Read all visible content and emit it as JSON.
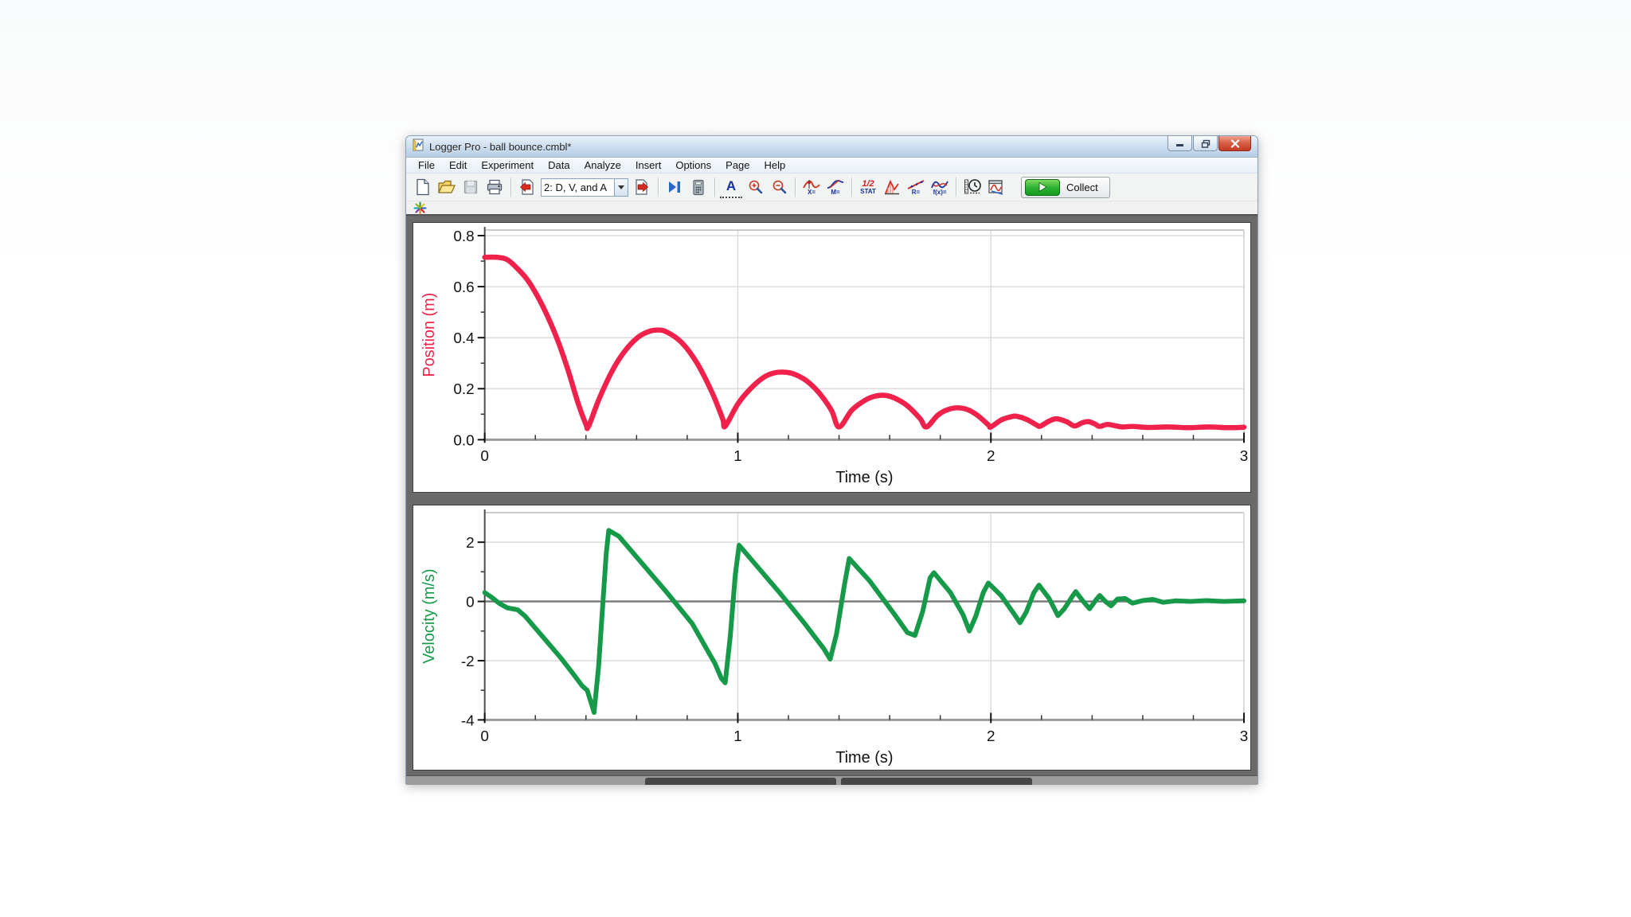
{
  "window": {
    "title": "Logger Pro - ball bounce.cmbl*"
  },
  "menu": {
    "items": [
      "File",
      "Edit",
      "Experiment",
      "Data",
      "Analyze",
      "Insert",
      "Options",
      "Page",
      "Help"
    ]
  },
  "toolbar": {
    "page_selector_value": "2: D, V, and A",
    "collect_label": "Collect",
    "icon_labels": {
      "autoscale": "A",
      "examine": "X=",
      "tangent": "M=",
      "stats_fraction": "1/2",
      "stats": "STAT",
      "linear_fit": "R=",
      "curve_fit": "f(x)="
    },
    "icons": [
      "new-file",
      "open-folder",
      "save",
      "print",
      "previous-page",
      "page-selector",
      "next-page",
      "step-playback",
      "calculator",
      "autoscale",
      "zoom-in",
      "zoom-out",
      "examine",
      "tangent",
      "statistics",
      "integral",
      "linear-fit",
      "curve-fit",
      "data-collection",
      "store-run",
      "collect"
    ]
  },
  "colors": {
    "position": "#f0214b",
    "velocity": "#169a49",
    "collect_green": "#2eb336",
    "close_red": "#c23a22"
  },
  "chart_data": [
    {
      "type": "line",
      "name": "position-vs-time",
      "xlabel": "Time (s)",
      "ylabel": "Position (m)",
      "xlim": [
        0,
        3
      ],
      "ylim": [
        0,
        0.822
      ],
      "xticks": [
        {
          "v": 0,
          "label": "0"
        },
        {
          "v": 1,
          "label": "1"
        },
        {
          "v": 2,
          "label": "2"
        },
        {
          "v": 3,
          "label": "3"
        }
      ],
      "yticks": [
        {
          "v": 0,
          "label": "0.0"
        },
        {
          "v": 0.2,
          "label": "0.2"
        },
        {
          "v": 0.4,
          "label": "0.4"
        },
        {
          "v": 0.6,
          "label": "0.6"
        },
        {
          "v": 0.8,
          "label": "0.8"
        }
      ],
      "x_minor_step": 0.2,
      "y_minor_step": 0.1,
      "grid_x": [
        1,
        2
      ],
      "grid_y": [
        0.2,
        0.4,
        0.6,
        0.8
      ],
      "zero_line": false,
      "grid": true,
      "legend": "none",
      "color": "#f0214b",
      "smooth": true,
      "series": [
        {
          "name": "Position",
          "points": [
            [
              0,
              0.715
            ],
            [
              0.05,
              0.715
            ],
            [
              0.09,
              0.705
            ],
            [
              0.13,
              0.67
            ],
            [
              0.17,
              0.625
            ],
            [
              0.21,
              0.56
            ],
            [
              0.25,
              0.48
            ],
            [
              0.29,
              0.385
            ],
            [
              0.33,
              0.27
            ],
            [
              0.37,
              0.14
            ],
            [
              0.4,
              0.06
            ],
            [
              0.41,
              0.052
            ],
            [
              0.45,
              0.155
            ],
            [
              0.5,
              0.263
            ],
            [
              0.55,
              0.343
            ],
            [
              0.6,
              0.397
            ],
            [
              0.64,
              0.421
            ],
            [
              0.68,
              0.43
            ],
            [
              0.72,
              0.422
            ],
            [
              0.78,
              0.379
            ],
            [
              0.84,
              0.298
            ],
            [
              0.9,
              0.181
            ],
            [
              0.94,
              0.082
            ],
            [
              0.95,
              0.053
            ],
            [
              1.0,
              0.14
            ],
            [
              1.05,
              0.2
            ],
            [
              1.1,
              0.243
            ],
            [
              1.14,
              0.261
            ],
            [
              1.18,
              0.265
            ],
            [
              1.22,
              0.258
            ],
            [
              1.27,
              0.232
            ],
            [
              1.32,
              0.185
            ],
            [
              1.37,
              0.115
            ],
            [
              1.4,
              0.05
            ],
            [
              1.45,
              0.115
            ],
            [
              1.5,
              0.153
            ],
            [
              1.54,
              0.17
            ],
            [
              1.58,
              0.174
            ],
            [
              1.62,
              0.163
            ],
            [
              1.67,
              0.133
            ],
            [
              1.72,
              0.083
            ],
            [
              1.745,
              0.05
            ],
            [
              1.79,
              0.096
            ],
            [
              1.83,
              0.118
            ],
            [
              1.87,
              0.125
            ],
            [
              1.91,
              0.117
            ],
            [
              1.95,
              0.093
            ],
            [
              1.99,
              0.058
            ],
            [
              2.0,
              0.05
            ],
            [
              2.04,
              0.077
            ],
            [
              2.08,
              0.09
            ],
            [
              2.1,
              0.092
            ],
            [
              2.14,
              0.08
            ],
            [
              2.18,
              0.058
            ],
            [
              2.195,
              0.053
            ],
            [
              2.23,
              0.073
            ],
            [
              2.26,
              0.082
            ],
            [
              2.3,
              0.07
            ],
            [
              2.33,
              0.054
            ],
            [
              2.36,
              0.066
            ],
            [
              2.385,
              0.071
            ],
            [
              2.41,
              0.062
            ],
            [
              2.43,
              0.052
            ],
            [
              2.46,
              0.06
            ],
            [
              2.49,
              0.055
            ],
            [
              2.52,
              0.05
            ],
            [
              2.56,
              0.052
            ],
            [
              2.62,
              0.048
            ],
            [
              2.7,
              0.05
            ],
            [
              2.78,
              0.047
            ],
            [
              2.86,
              0.05
            ],
            [
              2.94,
              0.047
            ],
            [
              3.0,
              0.049
            ]
          ]
        }
      ]
    },
    {
      "type": "line",
      "name": "velocity-vs-time",
      "xlabel": "Time (s)",
      "ylabel": "Velocity (m/s)",
      "xlim": [
        0,
        3
      ],
      "ylim": [
        -4,
        3
      ],
      "xticks": [
        {
          "v": 0,
          "label": "0"
        },
        {
          "v": 1,
          "label": "1"
        },
        {
          "v": 2,
          "label": "2"
        },
        {
          "v": 3,
          "label": "3"
        }
      ],
      "yticks": [
        {
          "v": -4,
          "label": "-4"
        },
        {
          "v": -2,
          "label": "-2"
        },
        {
          "v": 0,
          "label": "0"
        },
        {
          "v": 2,
          "label": "2"
        }
      ],
      "x_minor_step": 0.2,
      "y_minor_step": 1,
      "grid_x": [
        1,
        2
      ],
      "grid_y": [
        2,
        -2
      ],
      "zero_line": true,
      "grid": true,
      "legend": "none",
      "color": "#169a49",
      "smooth": false,
      "series": [
        {
          "name": "Velocity",
          "points": [
            [
              0,
              0.3
            ],
            [
              0.03,
              0.12
            ],
            [
              0.06,
              -0.08
            ],
            [
              0.09,
              -0.22
            ],
            [
              0.13,
              -0.28
            ],
            [
              0.16,
              -0.5
            ],
            [
              0.2,
              -0.9
            ],
            [
              0.25,
              -1.4
            ],
            [
              0.3,
              -1.9
            ],
            [
              0.35,
              -2.45
            ],
            [
              0.385,
              -2.85
            ],
            [
              0.405,
              -3.0
            ],
            [
              0.425,
              -3.55
            ],
            [
              0.432,
              -3.75
            ],
            [
              0.45,
              -2.2
            ],
            [
              0.465,
              -0.3
            ],
            [
              0.48,
              1.6
            ],
            [
              0.49,
              2.4
            ],
            [
              0.53,
              2.2
            ],
            [
              0.62,
              1.3
            ],
            [
              0.72,
              0.3
            ],
            [
              0.82,
              -0.75
            ],
            [
              0.91,
              -2.1
            ],
            [
              0.935,
              -2.6
            ],
            [
              0.95,
              -2.75
            ],
            [
              0.97,
              -1.2
            ],
            [
              0.99,
              0.9
            ],
            [
              1.005,
              1.9
            ],
            [
              1.06,
              1.35
            ],
            [
              1.16,
              0.35
            ],
            [
              1.26,
              -0.7
            ],
            [
              1.34,
              -1.6
            ],
            [
              1.365,
              -1.95
            ],
            [
              1.39,
              -1.1
            ],
            [
              1.42,
              0.5
            ],
            [
              1.44,
              1.45
            ],
            [
              1.52,
              0.7
            ],
            [
              1.62,
              -0.45
            ],
            [
              1.67,
              -1.05
            ],
            [
              1.7,
              -1.15
            ],
            [
              1.73,
              -0.35
            ],
            [
              1.76,
              0.8
            ],
            [
              1.775,
              0.97
            ],
            [
              1.84,
              0.3
            ],
            [
              1.89,
              -0.45
            ],
            [
              1.915,
              -1.0
            ],
            [
              1.94,
              -0.5
            ],
            [
              1.97,
              0.3
            ],
            [
              1.99,
              0.62
            ],
            [
              2.04,
              0.2
            ],
            [
              2.09,
              -0.4
            ],
            [
              2.115,
              -0.72
            ],
            [
              2.14,
              -0.35
            ],
            [
              2.17,
              0.3
            ],
            [
              2.19,
              0.55
            ],
            [
              2.23,
              0.1
            ],
            [
              2.265,
              -0.48
            ],
            [
              2.29,
              -0.25
            ],
            [
              2.32,
              0.15
            ],
            [
              2.335,
              0.33
            ],
            [
              2.365,
              0.0
            ],
            [
              2.39,
              -0.25
            ],
            [
              2.415,
              0.05
            ],
            [
              2.43,
              0.2
            ],
            [
              2.455,
              -0.02
            ],
            [
              2.475,
              -0.15
            ],
            [
              2.5,
              0.08
            ],
            [
              2.53,
              0.1
            ],
            [
              2.56,
              -0.06
            ],
            [
              2.6,
              0.03
            ],
            [
              2.64,
              0.07
            ],
            [
              2.68,
              -0.03
            ],
            [
              2.73,
              0.02
            ],
            [
              2.79,
              0.0
            ],
            [
              2.85,
              0.03
            ],
            [
              2.92,
              0.0
            ],
            [
              3.0,
              0.02
            ]
          ]
        }
      ]
    }
  ]
}
